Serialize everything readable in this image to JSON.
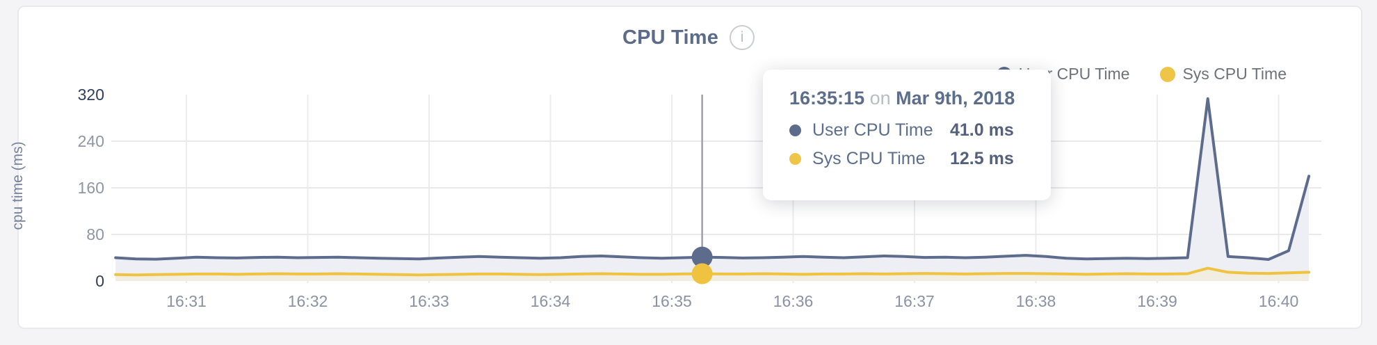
{
  "card": {
    "title": "CPU Time",
    "info_icon_glyph": "i"
  },
  "y_axis": {
    "title": "cpu time (ms)",
    "ticks": [
      0,
      80,
      160,
      240,
      320
    ],
    "emphasized_ticks": [
      0,
      320
    ]
  },
  "x_axis": {
    "ticks": [
      "16:31",
      "16:32",
      "16:33",
      "16:34",
      "16:35",
      "16:36",
      "16:37",
      "16:38",
      "16:39",
      "16:40"
    ]
  },
  "legend": {
    "items": [
      {
        "label": "User CPU Time",
        "color": "#5d6b8d"
      },
      {
        "label": "Sys CPU Time",
        "color": "#eec547"
      }
    ]
  },
  "tooltip": {
    "time": "16:35:15",
    "connector": "on",
    "date": "Mar 9th, 2018",
    "rows": [
      {
        "label": "User CPU Time",
        "value": "41.0 ms",
        "color": "#5d6b8d"
      },
      {
        "label": "Sys CPU Time",
        "value": "12.5 ms",
        "color": "#eec547"
      }
    ]
  },
  "chart_data": {
    "type": "area",
    "title": "CPU Time",
    "ylabel": "cpu time (ms)",
    "ylim": [
      0,
      320
    ],
    "grid": true,
    "legend_position": "top-right",
    "x_tick_labels": [
      "16:31",
      "16:32",
      "16:33",
      "16:34",
      "16:35",
      "16:36",
      "16:37",
      "16:38",
      "16:39",
      "16:40"
    ],
    "sample_start_time": "16:30:25",
    "sample_interval_sec": 10,
    "hover_index": 29,
    "hover_time": "16:35:15",
    "hover_date": "Mar 9th, 2018",
    "series": [
      {
        "name": "User CPU Time",
        "unit": "ms",
        "color": "#5d6b8d",
        "fill": "#edeff4",
        "values": [
          40,
          38,
          37.5,
          39,
          41,
          40,
          39.5,
          40.5,
          41,
          40,
          40.5,
          41,
          40,
          39,
          38.5,
          38,
          39.5,
          41,
          42,
          41,
          40,
          39,
          40,
          42,
          43,
          41.5,
          40,
          39,
          40,
          41,
          40.5,
          39.5,
          40,
          41,
          42,
          41,
          40,
          41.5,
          43,
          42,
          40.5,
          41,
          40,
          41,
          42.5,
          44,
          42,
          39,
          38,
          38.5,
          39,
          38.5,
          39,
          40,
          313,
          42,
          40,
          37,
          52,
          180
        ]
      },
      {
        "name": "Sys CPU Time",
        "unit": "ms",
        "color": "#efc340",
        "fill": "#f1ede1",
        "values": [
          11,
          10.5,
          11,
          11.5,
          12,
          12,
          11.5,
          12,
          12.5,
          12,
          12,
          12.5,
          12,
          11.5,
          11,
          10.5,
          11,
          11.5,
          12,
          12,
          11.5,
          11,
          11.5,
          12,
          12.5,
          12,
          11.5,
          11.5,
          12,
          12.5,
          12,
          12,
          12.5,
          12,
          11.5,
          12,
          12,
          12.5,
          12,
          12.5,
          13,
          12.5,
          12,
          12.5,
          13,
          13,
          12.5,
          12,
          11.5,
          12,
          12.5,
          12,
          12,
          12.5,
          22,
          15,
          13.5,
          13,
          14,
          15
        ]
      }
    ]
  }
}
